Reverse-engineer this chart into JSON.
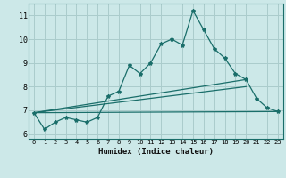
{
  "title": "",
  "xlabel": "Humidex (Indice chaleur)",
  "ylabel": "",
  "bg_color": "#cce8e8",
  "grid_color": "#aacccc",
  "line_color": "#1a6e6a",
  "xlim": [
    -0.5,
    23.5
  ],
  "ylim": [
    5.8,
    11.5
  ],
  "xticks": [
    0,
    1,
    2,
    3,
    4,
    5,
    6,
    7,
    8,
    9,
    10,
    11,
    12,
    13,
    14,
    15,
    16,
    17,
    18,
    19,
    20,
    21,
    22,
    23
  ],
  "yticks": [
    6,
    7,
    8,
    9,
    10,
    11
  ],
  "series1": [
    6.9,
    6.2,
    6.5,
    6.7,
    6.6,
    6.5,
    6.7,
    7.6,
    7.8,
    8.9,
    8.55,
    9.0,
    9.8,
    10.0,
    9.75,
    11.2,
    10.4,
    9.6,
    9.2,
    8.55,
    8.3,
    7.5,
    7.1,
    6.95
  ],
  "series2_x": [
    0,
    23
  ],
  "series2_y": [
    6.9,
    6.95
  ],
  "series3_x": [
    0,
    20
  ],
  "series3_y": [
    6.9,
    8.3
  ],
  "series4_x": [
    0,
    20
  ],
  "series4_y": [
    6.9,
    8.0
  ],
  "xlabel_fontsize": 6.5,
  "tick_fontsize_x": 5.0,
  "tick_fontsize_y": 6.0
}
